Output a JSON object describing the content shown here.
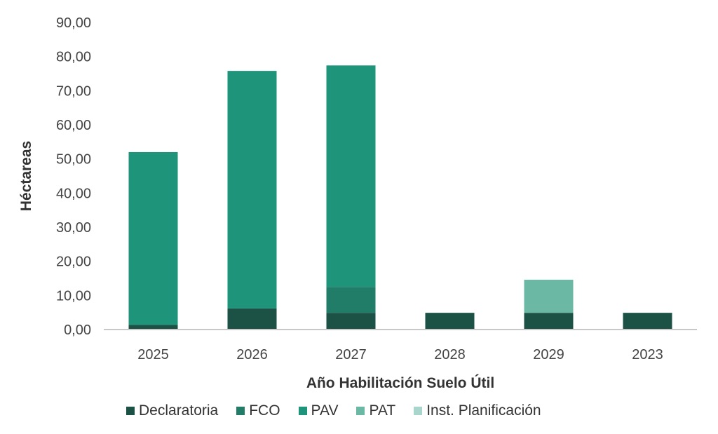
{
  "chart_data": {
    "type": "bar",
    "stacked": true,
    "categories": [
      "2025",
      "2026",
      "2027",
      "2028",
      "2029",
      "2023"
    ],
    "series": [
      {
        "name": "Declaratoria",
        "color": "#1b5245",
        "values": [
          1.4,
          6.2,
          4.9,
          4.9,
          4.9,
          4.9
        ]
      },
      {
        "name": "FCO",
        "color": "#217d68",
        "values": [
          0,
          0,
          7.6,
          0,
          0,
          0
        ]
      },
      {
        "name": "PAV",
        "color": "#1e957a",
        "values": [
          50.6,
          69.6,
          64.9,
          0,
          0,
          0
        ]
      },
      {
        "name": "PAT",
        "color": "#6bb8a5",
        "values": [
          0,
          0,
          0,
          0,
          9.7,
          0
        ]
      },
      {
        "name": "Inst. Planificación",
        "color": "#a9d6cc",
        "values": [
          0,
          0,
          0,
          0,
          0,
          0
        ]
      }
    ],
    "xlabel": "Año Habilitación Suelo Útil",
    "ylabel": "Héctareas",
    "ylim": [
      0,
      90
    ],
    "yticks": [
      "0,00",
      "10,00",
      "20,00",
      "30,00",
      "40,00",
      "50,00",
      "60,00",
      "70,00",
      "80,00",
      "90,00"
    ],
    "grid": false,
    "legend": "bottom"
  }
}
